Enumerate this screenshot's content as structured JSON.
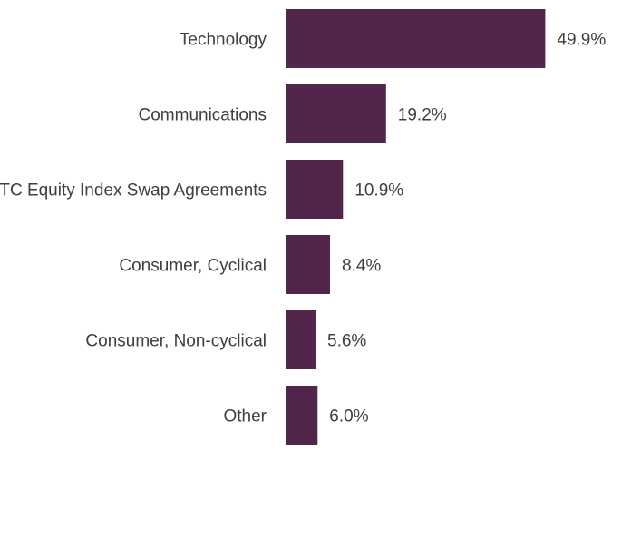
{
  "chart_data": {
    "type": "bar",
    "orientation": "horizontal",
    "categories": [
      "Technology",
      "Communications",
      "OTC Equity Index Swap Agreements",
      "Consumer, Cyclical",
      "Consumer, Non-cyclical",
      "Other"
    ],
    "values": [
      49.9,
      19.2,
      10.9,
      8.4,
      5.6,
      6.0
    ],
    "value_labels": [
      "49.9%",
      "19.2%",
      "10.9%",
      "8.4%",
      "5.6%",
      "6.0%"
    ],
    "unit": "%",
    "xlim": [
      0,
      55
    ],
    "bar_color": "#52264b",
    "text_color": "#3f3f3f",
    "title": "",
    "xlabel": "",
    "ylabel": "",
    "grid": false,
    "legend": "none"
  }
}
